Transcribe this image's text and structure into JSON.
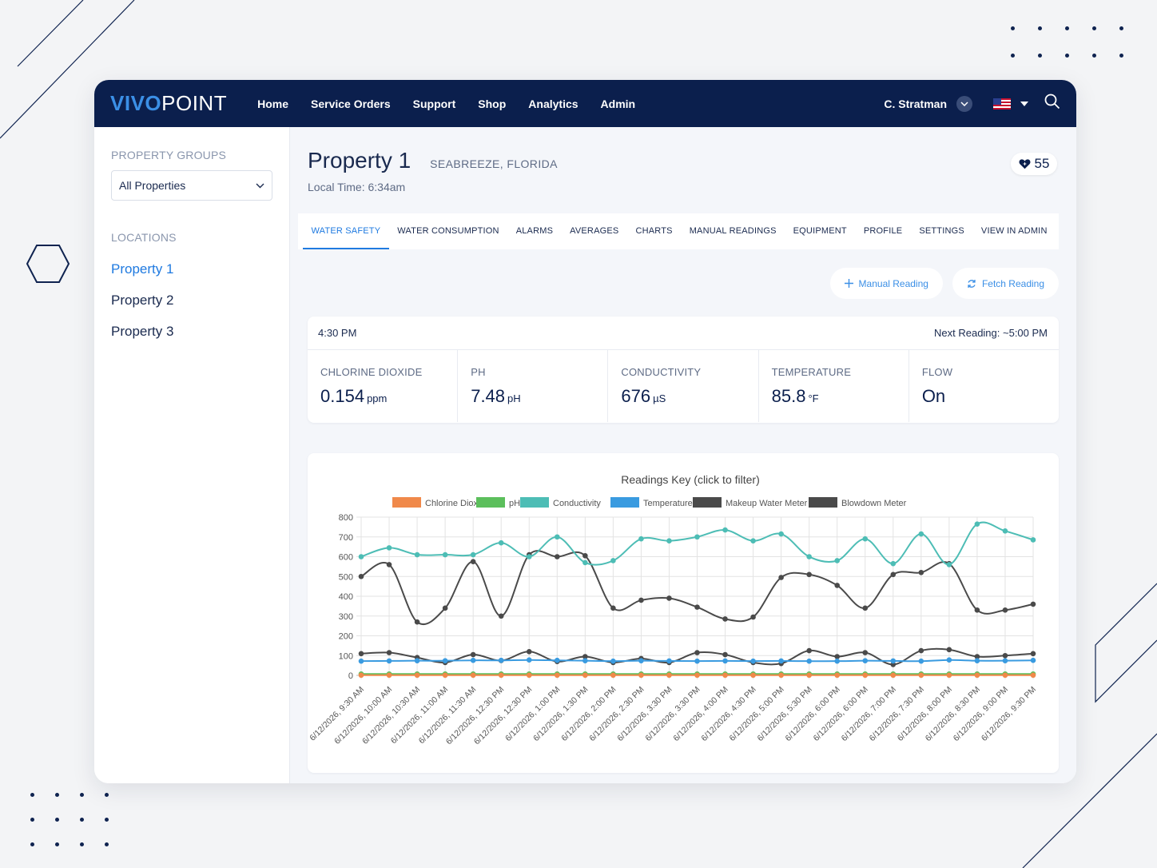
{
  "app": {
    "logo_a": "VIVO",
    "logo_b": "POINT",
    "nav": [
      "Home",
      "Service Orders",
      "Support",
      "Shop",
      "Analytics",
      "Admin"
    ],
    "user": "C. Stratman"
  },
  "sidebar": {
    "groups_label": "PROPERTY GROUPS",
    "group_selected": "All Properties",
    "locations_label": "LOCATIONS",
    "locations": [
      "Property 1",
      "Property 2",
      "Property 3"
    ]
  },
  "property": {
    "title": "Property 1",
    "location": "SEABREEZE, FLORIDA",
    "local_time": "Local Time: 6:34am",
    "favorites": "55"
  },
  "tabs": [
    "WATER SAFETY",
    "WATER CONSUMPTION",
    "ALARMS",
    "AVERAGES",
    "CHARTS",
    "MANUAL READINGS",
    "EQUIPMENT",
    "PROFILE",
    "SETTINGS",
    "VIEW IN ADMIN"
  ],
  "actions": {
    "manual": "Manual Reading",
    "fetch": "Fetch Reading"
  },
  "reading": {
    "time": "4:30 PM",
    "next": "Next Reading: ~5:00 PM",
    "metrics": [
      {
        "label": "CHLORINE DIOXIDE",
        "value": "0.154",
        "unit": "ppm"
      },
      {
        "label": "PH",
        "value": "7.48",
        "unit": "pH"
      },
      {
        "label": "CONDUCTIVITY",
        "value": "676",
        "unit": "µS"
      },
      {
        "label": "TEMPERATURE",
        "value": "85.8",
        "unit": "°F"
      },
      {
        "label": "FLOW",
        "value": "On",
        "unit": ""
      }
    ]
  },
  "colors": {
    "nav_bg": "#0b1f4d",
    "accent": "#1f7ae0"
  },
  "chart_data": {
    "type": "line",
    "title": "Readings Key (click to filter)",
    "ylim": [
      0,
      800
    ],
    "yticks": [
      0,
      100,
      200,
      300,
      400,
      500,
      600,
      700,
      800
    ],
    "x": [
      "6/12/2026, 9:30 AM",
      "6/12/2026, 10:00 AM",
      "6/12/2026, 10:30 AM",
      "6/12/2026, 11:00 AM",
      "6/12/2026, 11:30 AM",
      "6/12/2026, 12:30 PM",
      "6/12/2026, 12:30 PM",
      "6/12/2026, 1:00 PM",
      "6/12/2026, 1:30 PM",
      "6/12/2026, 2:00 PM",
      "6/12/2026, 2:30 PM",
      "6/12/2026, 3:30 PM",
      "6/12/2026, 3:30 PM",
      "6/12/2026, 4:00 PM",
      "6/12/2026, 4:30 PM",
      "6/12/2026, 5:00 PM",
      "6/12/2026, 5:30 PM",
      "6/12/2026, 6:00 PM",
      "6/12/2026, 6:00 PM",
      "6/12/2026, 7:00 PM",
      "6/12/2026, 7:30 PM",
      "6/12/2026, 8:00 PM",
      "6/12/2026, 8:30 PM",
      "6/12/2026, 9:00 PM",
      "6/12/2026, 9:30 PM"
    ],
    "series": [
      {
        "name": "Chlorine Dioxide",
        "color": "#f0894a",
        "values": [
          1,
          1,
          1,
          1,
          1,
          1,
          1,
          1,
          1,
          1,
          1,
          1,
          1,
          1,
          1,
          1,
          1,
          1,
          1,
          1,
          1,
          1,
          1,
          1,
          1
        ]
      },
      {
        "name": "pH",
        "color": "#5cbf5c",
        "values": [
          7,
          7,
          7,
          7,
          7,
          7,
          7,
          7,
          7,
          7,
          7,
          7,
          7,
          7,
          7,
          7,
          7,
          7,
          7,
          7,
          7,
          7,
          7,
          7,
          7
        ]
      },
      {
        "name": "Conductivity",
        "color": "#4dbdb5",
        "values": [
          600,
          645,
          610,
          610,
          610,
          670,
          600,
          700,
          570,
          580,
          690,
          680,
          700,
          735,
          680,
          715,
          600,
          580,
          690,
          565,
          715,
          560,
          765,
          730,
          685
        ]
      },
      {
        "name": "Temperature",
        "color": "#3a9be0",
        "values": [
          72,
          73,
          74,
          74,
          76,
          76,
          78,
          76,
          74,
          72,
          74,
          73,
          72,
          73,
          72,
          73,
          72,
          72,
          74,
          73,
          72,
          78,
          74,
          74,
          76
        ]
      },
      {
        "name": "Makeup Water Meter",
        "color": "#4a4a4a",
        "values": [
          110,
          115,
          90,
          65,
          105,
          75,
          120,
          70,
          95,
          65,
          85,
          65,
          115,
          105,
          65,
          60,
          125,
          95,
          115,
          55,
          125,
          130,
          95,
          100,
          110
        ]
      },
      {
        "name": "Blowdown Meter",
        "color": "#4a4a4a",
        "values": [
          500,
          560,
          270,
          340,
          575,
          300,
          610,
          600,
          605,
          340,
          380,
          390,
          345,
          285,
          295,
          495,
          510,
          455,
          340,
          510,
          520,
          565,
          330,
          330,
          360
        ]
      }
    ]
  }
}
